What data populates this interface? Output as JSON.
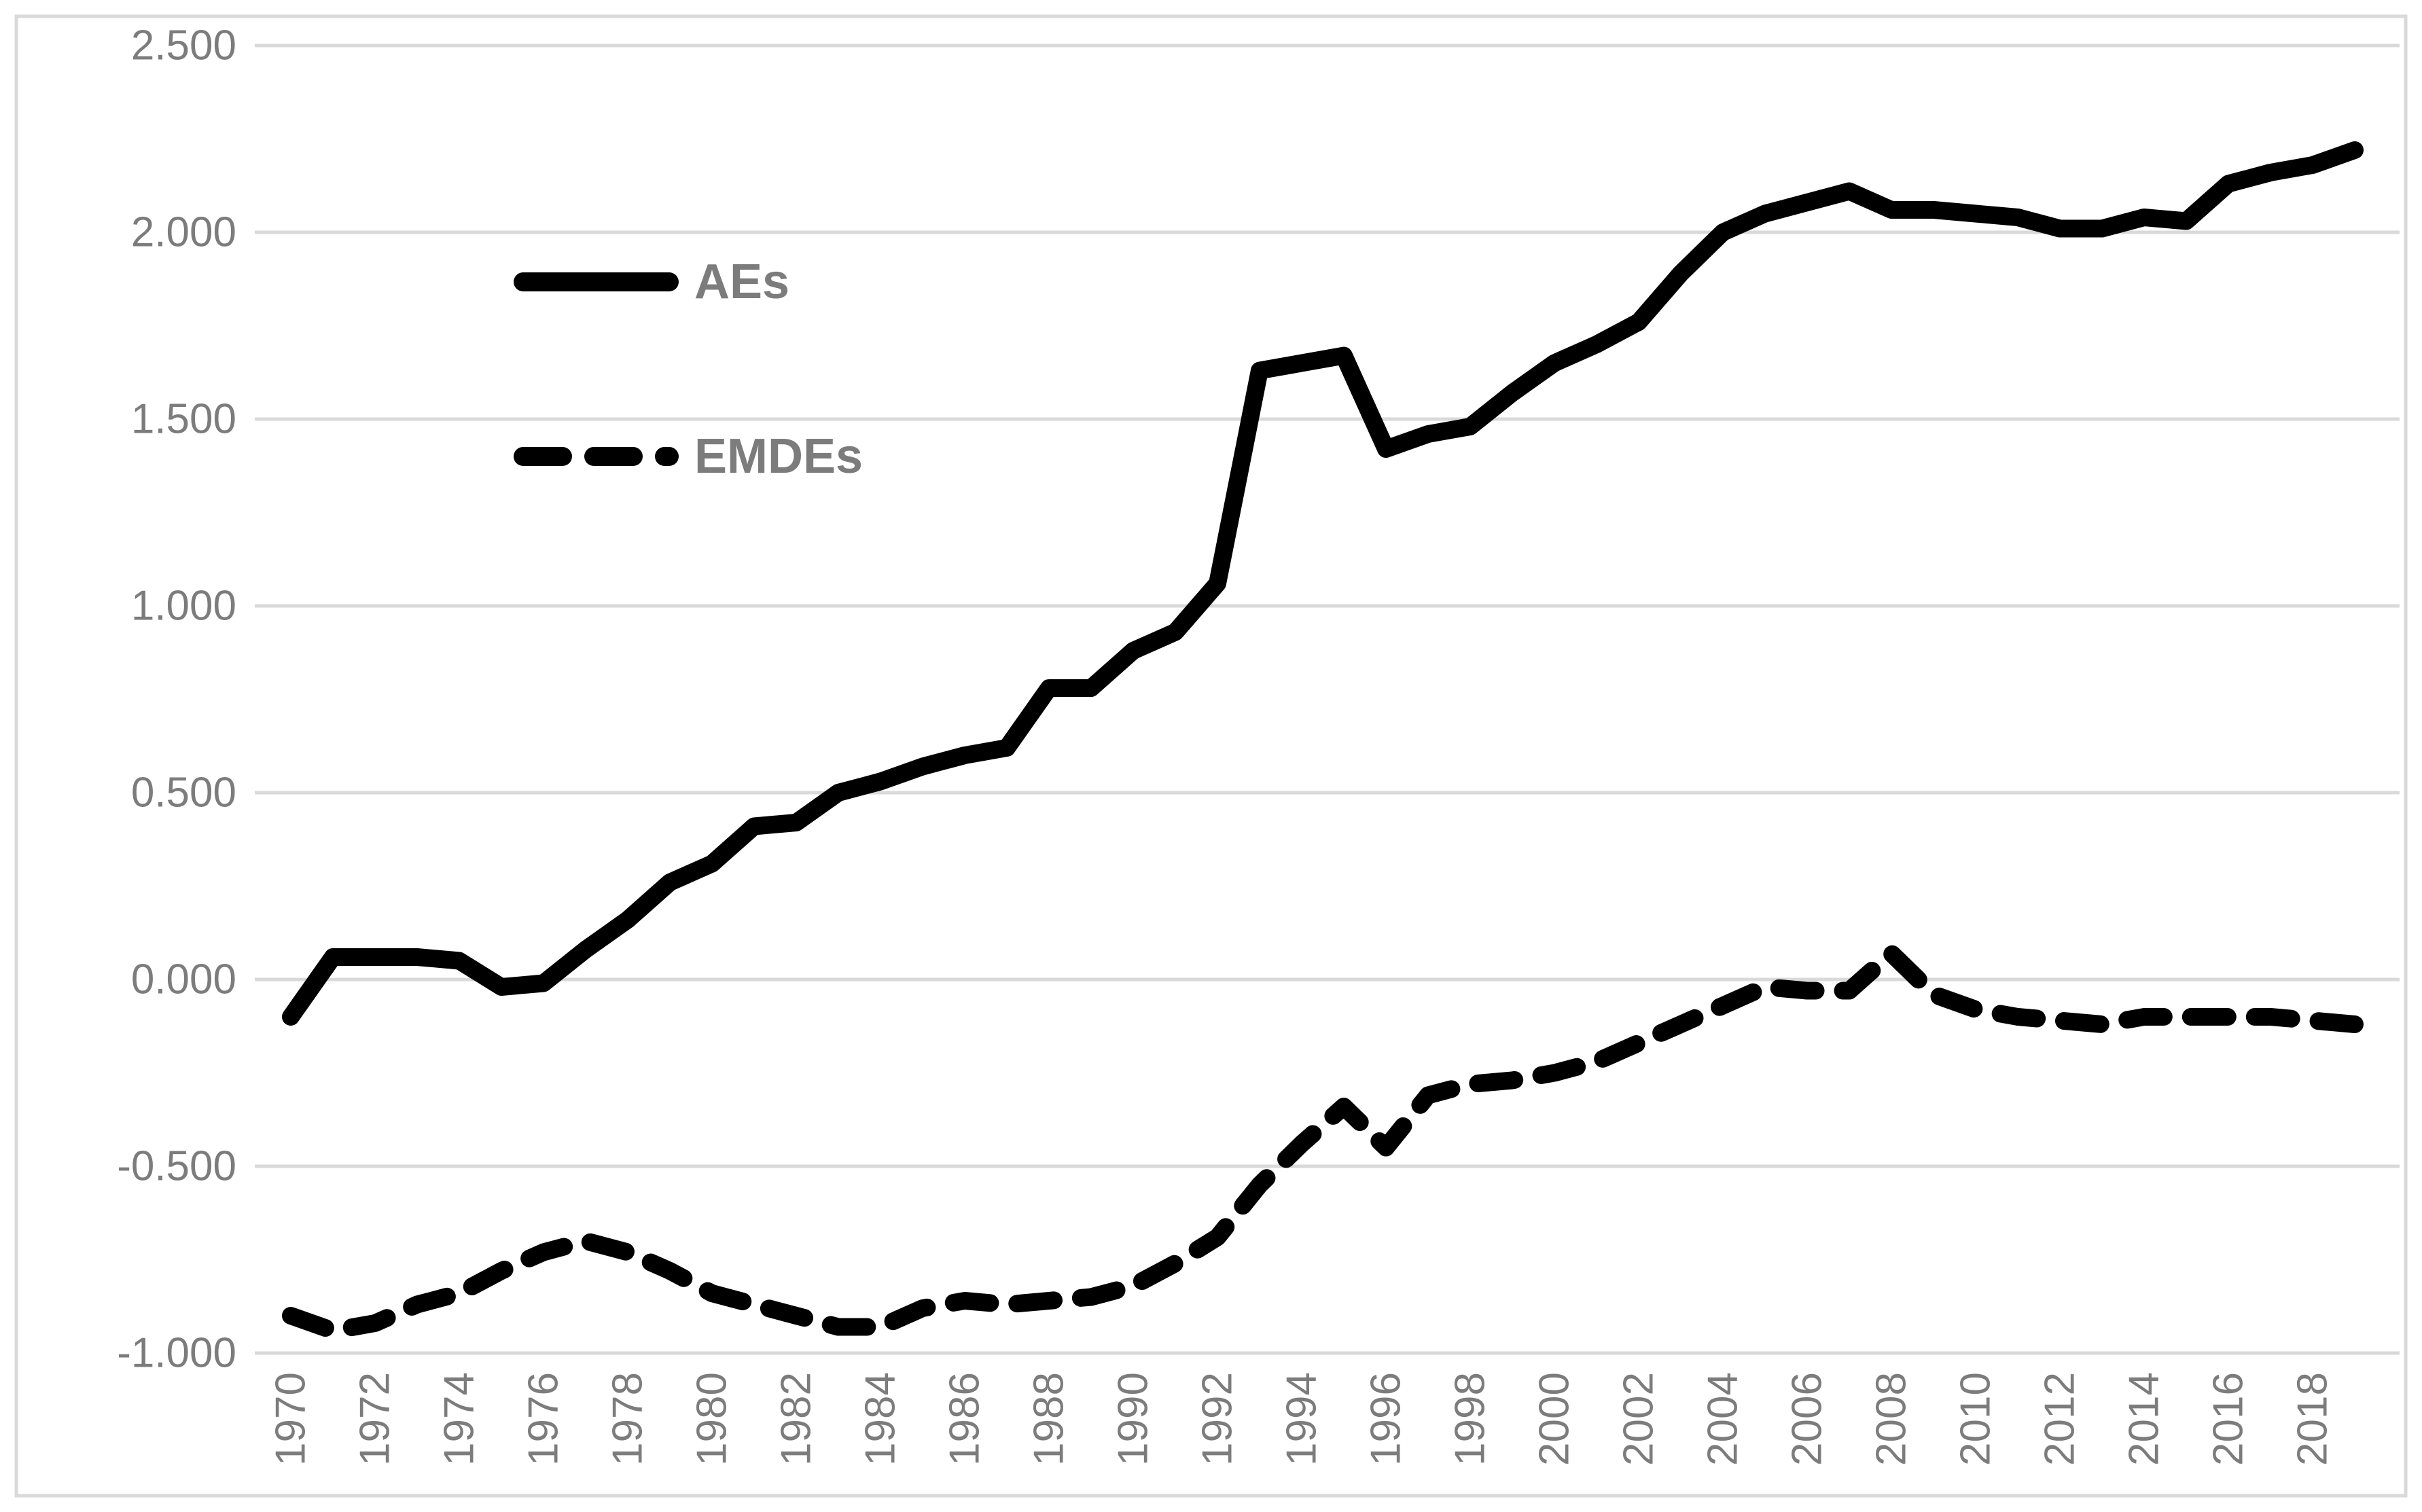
{
  "chart_data": {
    "type": "line",
    "title": "",
    "xlabel": "",
    "ylabel": "",
    "x": [
      1970,
      1971,
      1972,
      1973,
      1974,
      1975,
      1976,
      1977,
      1978,
      1979,
      1980,
      1981,
      1982,
      1983,
      1984,
      1985,
      1986,
      1987,
      1988,
      1989,
      1990,
      1991,
      1992,
      1993,
      1994,
      1995,
      1996,
      1997,
      1998,
      1999,
      2000,
      2001,
      2002,
      2003,
      2004,
      2005,
      2006,
      2007,
      2008,
      2009,
      2010,
      2011,
      2012,
      2013,
      2014,
      2015,
      2016,
      2017,
      2018,
      2019
    ],
    "series": [
      {
        "name": "AEs",
        "style": "solid",
        "color": "#000000",
        "values": [
          -0.1,
          0.06,
          0.06,
          0.06,
          0.05,
          -0.02,
          -0.01,
          0.08,
          0.16,
          0.26,
          0.31,
          0.41,
          0.42,
          0.5,
          0.53,
          0.57,
          0.6,
          0.62,
          0.78,
          0.78,
          0.88,
          0.93,
          1.06,
          1.63,
          1.65,
          1.67,
          1.42,
          1.46,
          1.48,
          1.57,
          1.65,
          1.7,
          1.76,
          1.89,
          2.0,
          2.05,
          2.08,
          2.11,
          2.06,
          2.06,
          2.05,
          2.04,
          2.01,
          2.01,
          2.04,
          2.03,
          2.13,
          2.16,
          2.18,
          2.22
        ]
      },
      {
        "name": "EMDEs",
        "style": "dashed",
        "color": "#000000",
        "values": [
          -0.9,
          -0.94,
          -0.92,
          -0.87,
          -0.84,
          -0.78,
          -0.73,
          -0.7,
          -0.73,
          -0.78,
          -0.84,
          -0.87,
          -0.9,
          -0.93,
          -0.93,
          -0.88,
          -0.86,
          -0.87,
          -0.86,
          -0.85,
          -0.82,
          -0.76,
          -0.69,
          -0.55,
          -0.44,
          -0.34,
          -0.45,
          -0.31,
          -0.28,
          -0.27,
          -0.25,
          -0.22,
          -0.17,
          -0.12,
          -0.07,
          -0.02,
          -0.03,
          -0.03,
          0.07,
          -0.04,
          -0.08,
          -0.1,
          -0.11,
          -0.12,
          -0.1,
          -0.1,
          -0.1,
          -0.1,
          -0.11,
          -0.12
        ]
      }
    ],
    "ylim": [
      -1.0,
      2.5
    ],
    "ytick_step": 0.5,
    "ytick_labels": [
      "2.500",
      "2.000",
      "1.500",
      "1.000",
      "0.500",
      "0.000",
      "-0.500",
      "-1.000"
    ],
    "xtick_labels": [
      "1970",
      "1972",
      "1974",
      "1976",
      "1978",
      "1980",
      "1982",
      "1984",
      "1986",
      "1988",
      "1990",
      "1992",
      "1994",
      "1996",
      "1998",
      "2000",
      "2002",
      "2004",
      "2006",
      "2008",
      "2010",
      "2012",
      "2014",
      "2016",
      "2018"
    ],
    "grid": true,
    "legend_position": "inside-upper-left",
    "colors": {
      "background": "#ffffff",
      "frame": "#d9d9d9",
      "gridline": "#d9d9d9",
      "axis_text": "#7c7c7c",
      "legend_text": "#7c7c7c",
      "series_line": "#000000"
    }
  }
}
